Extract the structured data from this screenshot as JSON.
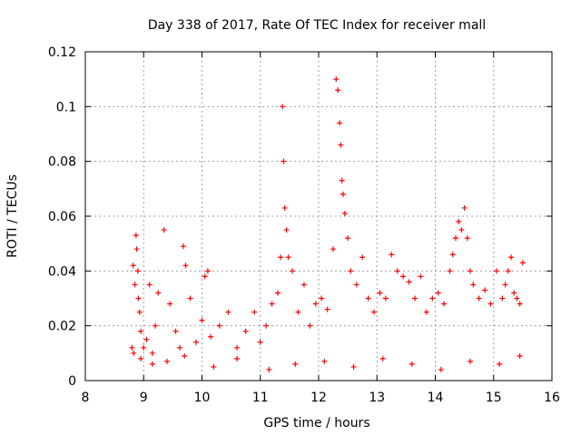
{
  "colors": {
    "series": "#ff0000",
    "axis": "#000000",
    "grid": "#a0a0a0",
    "background": "#ffffff"
  },
  "chart_data": {
    "type": "scatter",
    "title": "Day 338 of 2017, Rate Of TEC Index for receiver mall",
    "xlabel": "GPS time / hours",
    "ylabel": "ROTI / TECUs",
    "xlim": [
      8,
      16
    ],
    "ylim": [
      0,
      0.12
    ],
    "xticks": [
      8,
      9,
      10,
      11,
      12,
      13,
      14,
      15,
      16
    ],
    "xtick_labels": [
      "8",
      "9",
      "10",
      "11",
      "12",
      "13",
      "14",
      "15",
      "16"
    ],
    "yticks": [
      0,
      0.02,
      0.04,
      0.06,
      0.08,
      0.1,
      0.12
    ],
    "ytick_labels": [
      "0",
      "0.02",
      "0.04",
      "0.06",
      "0.08",
      "0.1",
      "0.12"
    ],
    "grid": true,
    "legend": "none",
    "marker": "plus",
    "series": [
      {
        "x": [
          8.8,
          8.82,
          8.85,
          8.87,
          8.88,
          8.9,
          8.91,
          8.93,
          8.95,
          9.0,
          9.05,
          9.1,
          9.15,
          9.2,
          9.25,
          9.35,
          9.45,
          9.55,
          9.62,
          9.68,
          9.72,
          9.8,
          9.9,
          10.0,
          10.05,
          10.1,
          10.15,
          10.3,
          10.45,
          10.6,
          10.75,
          10.9,
          11.0,
          11.1,
          11.2,
          11.3,
          11.35,
          11.38,
          11.4,
          11.42,
          11.45,
          11.48,
          11.55,
          11.65,
          11.75,
          11.85,
          11.95,
          12.05,
          12.15,
          12.25,
          12.3,
          12.33,
          12.36,
          12.38,
          12.4,
          12.42,
          12.45,
          12.5,
          12.55,
          12.65,
          12.75,
          12.85,
          12.95,
          13.05,
          13.15,
          13.25,
          13.35,
          13.45,
          13.55,
          13.65,
          13.75,
          13.85,
          13.95,
          14.05,
          14.15,
          14.25,
          14.3,
          14.35,
          14.4,
          14.45,
          14.5,
          14.55,
          14.6,
          14.65,
          14.75,
          14.85,
          14.95,
          15.05,
          15.15,
          15.2,
          15.25,
          15.3,
          15.35,
          15.4,
          15.45,
          15.5,
          8.83,
          8.95,
          9.15,
          9.4,
          9.7,
          10.2,
          10.6,
          11.15,
          11.6,
          12.1,
          12.6,
          13.1,
          13.6,
          14.1,
          14.6,
          15.1,
          15.45
        ],
        "y": [
          0.012,
          0.042,
          0.035,
          0.053,
          0.048,
          0.04,
          0.03,
          0.025,
          0.018,
          0.012,
          0.015,
          0.035,
          0.01,
          0.02,
          0.032,
          0.055,
          0.028,
          0.018,
          0.012,
          0.049,
          0.042,
          0.03,
          0.014,
          0.022,
          0.038,
          0.04,
          0.016,
          0.02,
          0.025,
          0.012,
          0.018,
          0.025,
          0.014,
          0.02,
          0.028,
          0.032,
          0.045,
          0.1,
          0.08,
          0.063,
          0.055,
          0.045,
          0.04,
          0.025,
          0.035,
          0.02,
          0.028,
          0.03,
          0.026,
          0.048,
          0.11,
          0.106,
          0.094,
          0.086,
          0.073,
          0.068,
          0.061,
          0.052,
          0.04,
          0.035,
          0.045,
          0.03,
          0.025,
          0.032,
          0.03,
          0.046,
          0.04,
          0.038,
          0.036,
          0.03,
          0.038,
          0.025,
          0.03,
          0.032,
          0.028,
          0.04,
          0.046,
          0.052,
          0.058,
          0.055,
          0.063,
          0.052,
          0.04,
          0.035,
          0.03,
          0.033,
          0.028,
          0.04,
          0.03,
          0.035,
          0.04,
          0.045,
          0.032,
          0.03,
          0.028,
          0.043,
          0.01,
          0.008,
          0.006,
          0.007,
          0.009,
          0.005,
          0.008,
          0.004,
          0.006,
          0.007,
          0.005,
          0.008,
          0.006,
          0.004,
          0.007,
          0.006,
          0.009
        ]
      }
    ]
  }
}
